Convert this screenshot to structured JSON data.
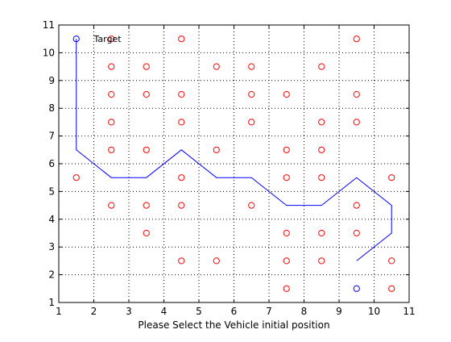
{
  "chart_data": {
    "type": "scatter",
    "xlabel": "Please Select the Vehicle initial position",
    "xlim": [
      1,
      11
    ],
    "ylim": [
      1,
      11
    ],
    "xticks": [
      1,
      2,
      3,
      4,
      5,
      6,
      7,
      8,
      9,
      10,
      11
    ],
    "yticks": [
      1,
      2,
      3,
      4,
      5,
      6,
      7,
      8,
      9,
      10,
      11
    ],
    "grid": true,
    "grid_style": "dotted",
    "series": [
      {
        "kind": "markers",
        "marker": "circle",
        "color": "#ff0000",
        "points": [
          [
            2.5,
            10.5
          ],
          [
            4.5,
            10.5
          ],
          [
            9.5,
            10.5
          ],
          [
            2.5,
            9.5
          ],
          [
            3.5,
            9.5
          ],
          [
            5.5,
            9.5
          ],
          [
            6.5,
            9.5
          ],
          [
            8.5,
            9.5
          ],
          [
            2.5,
            8.5
          ],
          [
            3.5,
            8.5
          ],
          [
            4.5,
            8.5
          ],
          [
            6.5,
            8.5
          ],
          [
            7.5,
            8.5
          ],
          [
            9.5,
            8.5
          ],
          [
            2.5,
            7.5
          ],
          [
            4.5,
            7.5
          ],
          [
            6.5,
            7.5
          ],
          [
            8.5,
            7.5
          ],
          [
            9.5,
            7.5
          ],
          [
            2.5,
            6.5
          ],
          [
            3.5,
            6.5
          ],
          [
            5.5,
            6.5
          ],
          [
            7.5,
            6.5
          ],
          [
            8.5,
            6.5
          ],
          [
            1.5,
            5.5
          ],
          [
            4.5,
            5.5
          ],
          [
            7.5,
            5.5
          ],
          [
            8.5,
            5.5
          ],
          [
            10.5,
            5.5
          ],
          [
            2.5,
            4.5
          ],
          [
            3.5,
            4.5
          ],
          [
            4.5,
            4.5
          ],
          [
            6.5,
            4.5
          ],
          [
            9.5,
            4.5
          ],
          [
            3.5,
            3.5
          ],
          [
            7.5,
            3.5
          ],
          [
            8.5,
            3.5
          ],
          [
            9.5,
            3.5
          ],
          [
            4.5,
            2.5
          ],
          [
            5.5,
            2.5
          ],
          [
            7.5,
            2.5
          ],
          [
            8.5,
            2.5
          ],
          [
            10.5,
            2.5
          ],
          [
            7.5,
            1.5
          ],
          [
            10.5,
            1.5
          ]
        ]
      },
      {
        "kind": "line",
        "color": "#0000ff",
        "x": [
          9.5,
          10.5,
          10.5,
          9.5,
          8.5,
          7.5,
          6.5,
          5.5,
          4.5,
          3.5,
          2.5,
          1.5,
          1.5
        ],
        "y": [
          2.5,
          3.5,
          4.5,
          5.5,
          4.5,
          4.5,
          5.5,
          5.5,
          6.5,
          5.5,
          5.5,
          6.5,
          10.5
        ]
      },
      {
        "kind": "markers",
        "marker": "circle",
        "color": "#0000ff",
        "points": [
          [
            1.5,
            10.5
          ],
          [
            9.5,
            1.5
          ]
        ]
      }
    ],
    "annotations": [
      {
        "text": "Target",
        "x": 2,
        "y": 10.5
      }
    ]
  }
}
